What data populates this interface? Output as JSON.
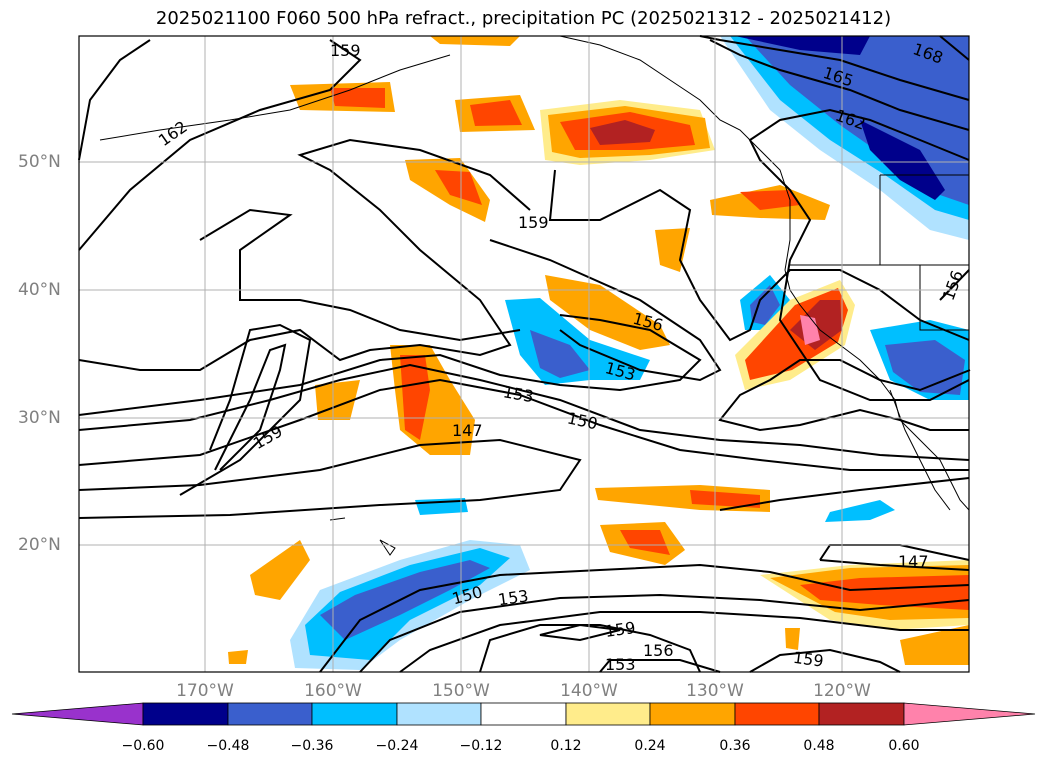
{
  "title": "2025021100 F060 500 hPa refract., precipitation PC (2025021312 - 2025021412)",
  "lat_labels": [
    "50°N",
    "40°N",
    "30°N",
    "20°N"
  ],
  "lon_labels": [
    "170°W",
    "160°W",
    "150°W",
    "140°W",
    "130°W",
    "120°W"
  ],
  "contour_labels": [
    "159",
    "168",
    "165",
    "162",
    "162",
    "159",
    "156",
    "156",
    "153",
    "153",
    "150",
    "147",
    "159",
    "147",
    "150",
    "153",
    "159",
    "156",
    "153",
    "159"
  ],
  "colorbar": {
    "ticks": [
      "−0.60",
      "−0.48",
      "−0.36",
      "−0.24",
      "−0.12",
      "0.12",
      "0.24",
      "0.36",
      "0.48",
      "0.60"
    ],
    "colors": [
      "#9932cc",
      "#00008b",
      "#3a5fcd",
      "#00bfff",
      "#b0e2ff",
      "#ffffff",
      "#ffec8b",
      "#ffa500",
      "#ff4500",
      "#b22222",
      "#ff82ab"
    ]
  }
}
